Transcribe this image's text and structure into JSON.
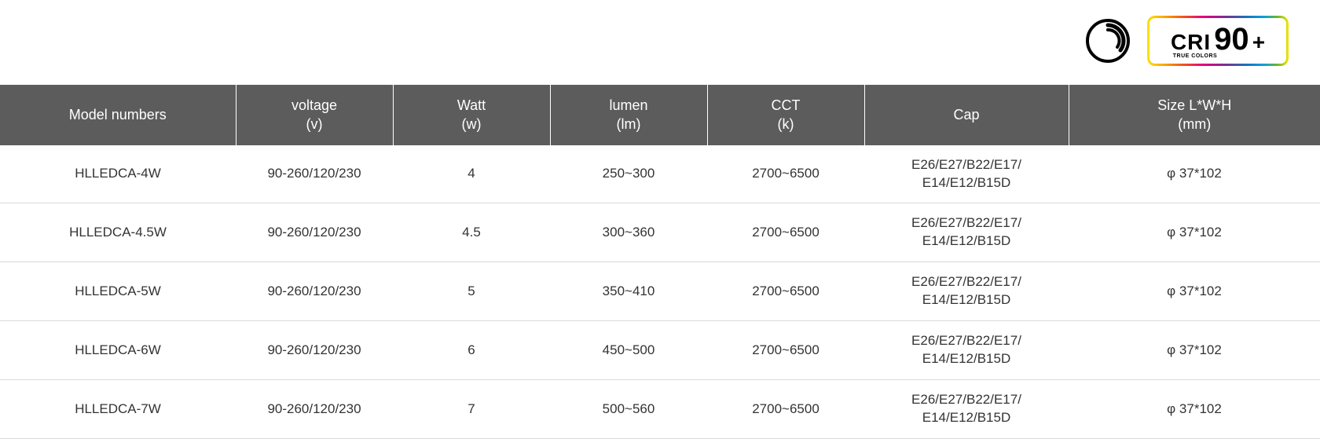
{
  "badges": {
    "cri": {
      "label": "CRI",
      "value": "90",
      "plus": "+",
      "sub": "TRUE COLORS"
    }
  },
  "table": {
    "columns": [
      {
        "line1": "Model numbers",
        "line2": ""
      },
      {
        "line1": "voltage",
        "line2": "(v)"
      },
      {
        "line1": "Watt",
        "line2": "(w)"
      },
      {
        "line1": "lumen",
        "line2": "(lm)"
      },
      {
        "line1": "CCT",
        "line2": "(k)"
      },
      {
        "line1": "Cap",
        "line2": ""
      },
      {
        "line1": "Size L*W*H",
        "line2": "(mm)"
      }
    ],
    "rows": [
      {
        "model": "HLLEDCA-4W",
        "voltage": "90-260/120/230",
        "watt": "4",
        "lumen": "250~300",
        "cct": "2700~6500",
        "cap1": "E26/E27/B22/E17/",
        "cap2": "E14/E12/B15D",
        "size": "φ 37*102"
      },
      {
        "model": "HLLEDCA-4.5W",
        "voltage": "90-260/120/230",
        "watt": "4.5",
        "lumen": "300~360",
        "cct": "2700~6500",
        "cap1": "E26/E27/B22/E17/",
        "cap2": "E14/E12/B15D",
        "size": "φ 37*102"
      },
      {
        "model": "HLLEDCA-5W",
        "voltage": "90-260/120/230",
        "watt": "5",
        "lumen": "350~410",
        "cct": "2700~6500",
        "cap1": "E26/E27/B22/E17/",
        "cap2": "E14/E12/B15D",
        "size": "φ 37*102"
      },
      {
        "model": "HLLEDCA-6W",
        "voltage": "90-260/120/230",
        "watt": "6",
        "lumen": "450~500",
        "cct": "2700~6500",
        "cap1": "E26/E27/B22/E17/",
        "cap2": "E14/E12/B15D",
        "size": "φ 37*102"
      },
      {
        "model": "HLLEDCA-7W",
        "voltage": "90-260/120/230",
        "watt": "7",
        "lumen": "500~560",
        "cct": "2700~6500",
        "cap1": "E26/E27/B22/E17/",
        "cap2": "E14/E12/B15D",
        "size": "φ 37*102"
      }
    ]
  },
  "style": {
    "header_bg": "#5c5c5c",
    "header_fg": "#ffffff",
    "row_border": "#d9d9d9",
    "text_color": "#333333",
    "font_size_header": 18,
    "font_size_body": 17
  }
}
